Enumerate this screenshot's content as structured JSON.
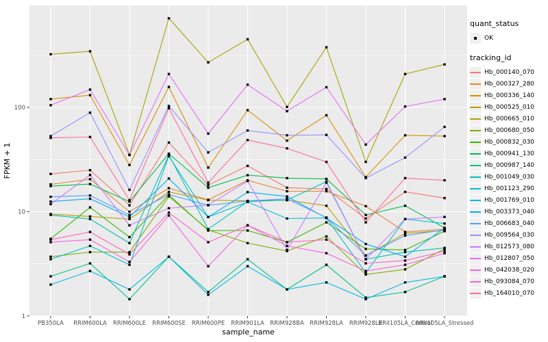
{
  "chart_data": {
    "type": "line",
    "title": "",
    "xlabel": "sample_name",
    "ylabel": "FPKM + 1",
    "y_scale": "log10",
    "ylim": [
      1,
      1000
    ],
    "y_tick_labels": [
      "1",
      "10",
      "100"
    ],
    "y_ticks": [
      1,
      10,
      100
    ],
    "y_minor_ticks": [
      3.162,
      31.62,
      316.2
    ],
    "grid": true,
    "panel_bg": "#EBEBEB",
    "grid_color": "#FFFFFF",
    "tick_color": "#333333",
    "tick_label_color": "#4D4D4D",
    "point_color": "#000000",
    "legend_position": "right",
    "categories": [
      "PB350LA",
      "RRIM600LA",
      "RRIM600LE",
      "RRIM600SE",
      "RRIM600PE",
      "RRIM901LA",
      "RRIM928BA",
      "RRIM928LA",
      "RRIM928LE",
      "RRII105LA_Control",
      "RRII105LA_Stressed"
    ],
    "series": [
      {
        "name": "Hb_000140_070",
        "color": "#F8766D",
        "values": [
          23,
          25,
          11.5,
          46,
          18,
          27.5,
          17,
          16.5,
          8.6,
          15.5,
          13.5
        ]
      },
      {
        "name": "Hb_000327_280",
        "color": "#EA8331",
        "values": [
          18.3,
          20.5,
          10,
          16.8,
          13,
          20,
          15.7,
          15.7,
          11.3,
          6.4,
          6.8
        ]
      },
      {
        "name": "Hb_000336_140",
        "color": "#D89000",
        "values": [
          120,
          131,
          28,
          157,
          26.5,
          94,
          48,
          84,
          21.5,
          54,
          53
        ]
      },
      {
        "name": "Hb_000525_010",
        "color": "#C09B00",
        "values": [
          9.5,
          9.0,
          8.5,
          15.5,
          12.9,
          12.7,
          12.9,
          11.4,
          3.8,
          6.2,
          6.6
        ]
      },
      {
        "name": "Hb_000665_010",
        "color": "#A3A500",
        "values": [
          323,
          345,
          35,
          715,
          270,
          450,
          101,
          377,
          30,
          209,
          258
        ]
      },
      {
        "name": "Hb_000680_050",
        "color": "#7CAE00",
        "values": [
          3.7,
          4.1,
          4.1,
          14,
          6.7,
          5.0,
          4.2,
          5.8,
          2.5,
          2.8,
          4.4
        ]
      },
      {
        "name": "Hb_000832_030",
        "color": "#39B600",
        "values": [
          5.5,
          11,
          5.7,
          14.5,
          6.6,
          6.6,
          5.1,
          7.9,
          4.4,
          4.3,
          6.5
        ]
      },
      {
        "name": "Hb_000941_130",
        "color": "#00BB4E",
        "values": [
          17.6,
          18.4,
          12.5,
          36,
          17,
          22.4,
          21,
          20.6,
          9.3,
          11.4,
          7.0
        ]
      },
      {
        "name": "Hb_000987_140",
        "color": "#00C087",
        "values": [
          2.4,
          3.2,
          1.45,
          3.7,
          1.7,
          3.5,
          1.8,
          3.1,
          1.5,
          1.7,
          2.4
        ]
      },
      {
        "name": "Hb_001049_030",
        "color": "#00C0B2",
        "values": [
          9.3,
          8.5,
          5.0,
          35,
          6.8,
          12.5,
          12.9,
          19.4,
          3.5,
          4.1,
          4.5
        ]
      },
      {
        "name": "Hb_001123_290",
        "color": "#00BFD3",
        "values": [
          3.5,
          4.7,
          3.1,
          34,
          8.9,
          12.4,
          8.6,
          8.7,
          2.6,
          8.5,
          7.7
        ]
      },
      {
        "name": "Hb_001769_010",
        "color": "#00B8E7",
        "values": [
          2.0,
          2.7,
          1.8,
          3.7,
          1.6,
          3.0,
          1.8,
          2.1,
          1.45,
          2.1,
          2.4
        ]
      },
      {
        "name": "Hb_003373_040",
        "color": "#00ACFC",
        "values": [
          12.5,
          13.3,
          8.9,
          20.8,
          8.9,
          15.4,
          14,
          8.7,
          4.9,
          3.7,
          7.0
        ]
      },
      {
        "name": "Hb_006683_040",
        "color": "#529EFF",
        "values": [
          13.9,
          14.3,
          9.3,
          14.6,
          11.5,
          12.7,
          13.3,
          8.8,
          3.8,
          5.9,
          6.7
        ]
      },
      {
        "name": "Hb_009564_030",
        "color": "#9590FF",
        "values": [
          53,
          89,
          16.2,
          103,
          37,
          60,
          54,
          54.5,
          21,
          33,
          65
        ]
      },
      {
        "name": "Hb_012573_080",
        "color": "#C77CFF",
        "values": [
          11.8,
          22.5,
          7.4,
          10.8,
          11.6,
          19.7,
          4.3,
          19,
          3.5,
          8.5,
          8.9
        ]
      },
      {
        "name": "Hb_012807_050",
        "color": "#E76BF3",
        "values": [
          105,
          148,
          35,
          209,
          56,
          165,
          92,
          156,
          44,
          102,
          120
        ]
      },
      {
        "name": "Hb_042038_020",
        "color": "#FA62DB",
        "values": [
          5.1,
          5.4,
          3.3,
          9.2,
          3.0,
          7.4,
          4.7,
          4.0,
          2.7,
          3.1,
          4.0
        ]
      },
      {
        "name": "Hb_093084_070",
        "color": "#FF61C3",
        "values": [
          5.4,
          6.4,
          3.9,
          9.8,
          5.1,
          7.4,
          5.1,
          5.4,
          3.2,
          3.4,
          4.2
        ]
      },
      {
        "name": "Hb_164010_070",
        "color": "#FF6A98",
        "values": [
          51,
          52,
          12.9,
          98,
          19,
          48.7,
          40.5,
          30,
          7.9,
          21,
          20
        ]
      }
    ]
  },
  "legend": {
    "quant_status": {
      "title": "quant_status",
      "items": [
        {
          "label": "OK",
          "marker": "point"
        }
      ]
    },
    "tracking_id": {
      "title": "tracking_id"
    }
  }
}
